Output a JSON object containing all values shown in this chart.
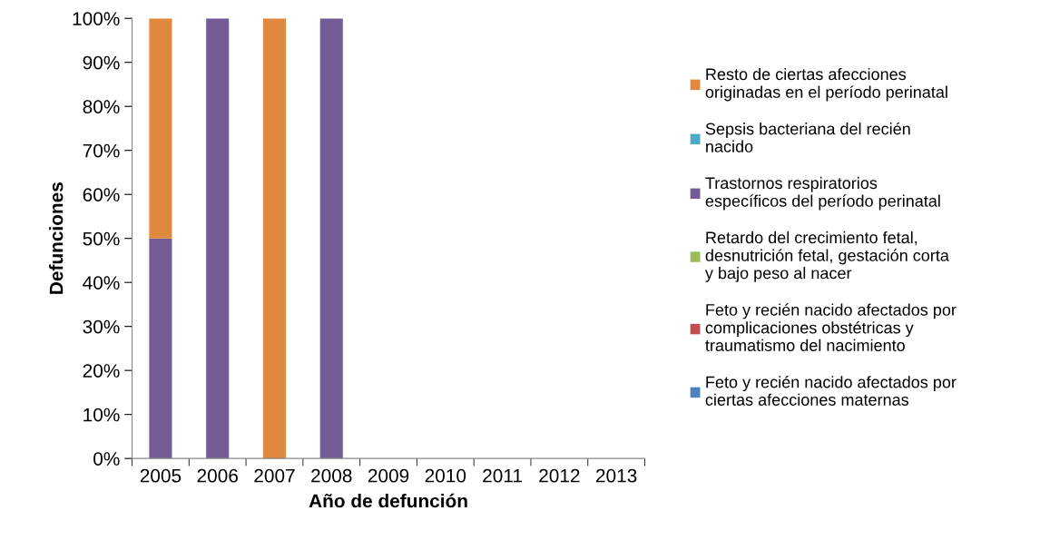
{
  "chart_data": {
    "type": "bar",
    "stacked": true,
    "xlabel": "Año de defunción",
    "ylabel": "Defunciones",
    "categories": [
      "2005",
      "2006",
      "2007",
      "2008",
      "2009",
      "2010",
      "2011",
      "2012",
      "2013"
    ],
    "series": [
      {
        "name": "Feto y recién nacido afectados por\nciertas afecciones maternas",
        "color": "#4f81bd",
        "values": [
          0,
          0,
          0,
          0,
          0,
          0,
          0,
          0,
          0
        ]
      },
      {
        "name": "Feto y recién nacido afectados por\ncomplicaciones obstétricas y\ntraumatismo del nacimiento",
        "color": "#c0504d",
        "values": [
          0,
          0,
          0,
          0,
          0,
          0,
          0,
          0,
          0
        ]
      },
      {
        "name": "Retardo del crecimiento fetal,\ndesnutrición fetal, gestación corta\ny bajo peso al nacer",
        "color": "#9bbb59",
        "values": [
          0,
          0,
          0,
          0,
          0,
          0,
          0,
          0,
          0
        ]
      },
      {
        "name": "Trastornos respiratorios\nespecíficos del período perinatal",
        "color": "#735c96",
        "values": [
          50,
          100,
          0,
          100,
          0,
          0,
          0,
          0,
          0
        ]
      },
      {
        "name": "Sepsis bacteriana del recién\nnacido",
        "color": "#4bacc6",
        "values": [
          0,
          0,
          0,
          0,
          0,
          0,
          0,
          0,
          0
        ]
      },
      {
        "name": "Resto de ciertas afecciones\noriginadas en el período perinatal",
        "color": "#e0883e",
        "values": [
          50,
          0,
          100,
          0,
          0,
          0,
          0,
          0,
          0
        ]
      }
    ],
    "ylim": [
      0,
      100
    ],
    "yticks": [
      {
        "value": 0,
        "label": "0%"
      },
      {
        "value": 10,
        "label": "10%"
      },
      {
        "value": 20,
        "label": "20%"
      },
      {
        "value": 30,
        "label": "30%"
      },
      {
        "value": 40,
        "label": "40%"
      },
      {
        "value": 50,
        "label": "50%"
      },
      {
        "value": 60,
        "label": "60%"
      },
      {
        "value": 70,
        "label": "70%"
      },
      {
        "value": 80,
        "label": "80%"
      },
      {
        "value": 90,
        "label": "90%"
      },
      {
        "value": 100,
        "label": "100%"
      }
    ],
    "grid": false,
    "legend": "right"
  }
}
